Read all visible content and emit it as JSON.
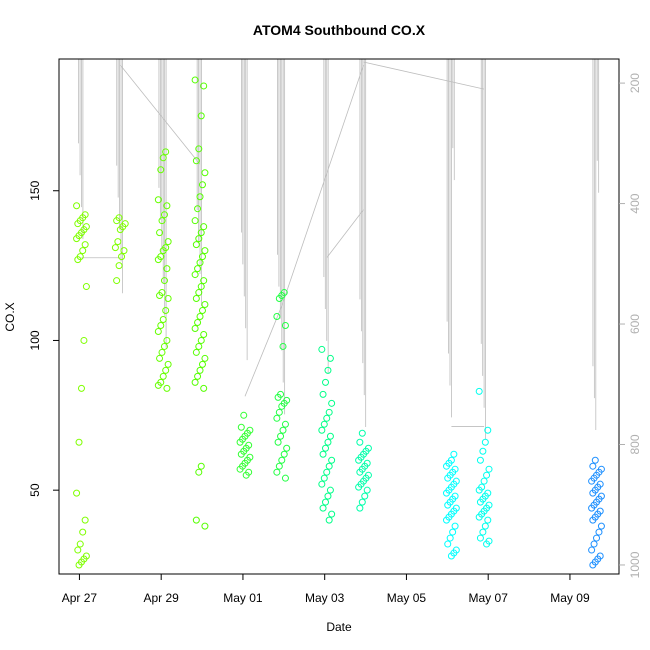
{
  "chart_data": {
    "type": "scatter",
    "title": "ATOM4 Southbound CO.X",
    "xlabel": "Date",
    "ylabel": "CO.X",
    "x_ticks": [
      "Apr 27",
      "Apr 29",
      "May 01",
      "May 03",
      "May 05",
      "May 07",
      "May 09"
    ],
    "x_tick_days": [
      0,
      2,
      4,
      6,
      8,
      10,
      12
    ],
    "y_ticks": [
      50,
      100,
      150
    ],
    "y2_ticks": [
      200,
      400,
      600,
      800,
      1000
    ],
    "xlim_days": [
      -0.5,
      13.2
    ],
    "ylim": [
      22,
      194
    ],
    "y2lim": [
      1015,
      160
    ],
    "colors": {
      "early": "#7fff00",
      "mid": "#00ff7f",
      "late": "#00ffff",
      "last": "#1e90ff",
      "pressure": "#bdbdbd"
    },
    "series": [
      {
        "day": 0.05,
        "color": "#7fff00",
        "values": [
          145,
          142,
          141,
          140,
          139,
          138,
          137,
          136,
          135,
          134,
          132,
          130,
          128,
          127,
          118,
          100,
          84,
          66,
          49,
          40,
          36,
          32,
          30,
          28,
          27,
          26,
          25
        ]
      },
      {
        "day": 1.0,
        "color": "#7fff00",
        "values": [
          141,
          140,
          139,
          138,
          137,
          133,
          131,
          130,
          128,
          125,
          120
        ]
      },
      {
        "day": 2.05,
        "color": "#66ff00",
        "values": [
          163,
          161,
          157,
          147,
          145,
          142,
          140,
          136,
          133,
          131,
          130,
          128,
          127,
          124,
          120,
          116,
          115,
          114,
          110,
          107,
          105,
          103,
          100,
          98,
          96,
          94,
          92,
          90,
          88,
          86,
          85,
          84
        ]
      },
      {
        "day": 2.95,
        "color": "#55ff00",
        "values": [
          187,
          185,
          175,
          164,
          160,
          156,
          152,
          148,
          144,
          140,
          138,
          136,
          134,
          132,
          130,
          128,
          126,
          124,
          122,
          120,
          118,
          116,
          114,
          112,
          110,
          108,
          106,
          104,
          102,
          100,
          98,
          96,
          94,
          92,
          90,
          88,
          86,
          84,
          58,
          56,
          40,
          38
        ]
      },
      {
        "day": 4.05,
        "color": "#33ff33",
        "values": [
          75,
          71,
          70,
          69,
          68,
          67,
          66,
          65,
          64,
          63,
          62,
          61,
          60,
          59,
          58,
          57,
          56,
          55
        ]
      },
      {
        "day": 4.95,
        "color": "#22ff44",
        "values": [
          116,
          115,
          114,
          108,
          105,
          98,
          82,
          81,
          80,
          79,
          78,
          76,
          74,
          72,
          70,
          68,
          66,
          64,
          62,
          60,
          58,
          56,
          54
        ]
      },
      {
        "day": 6.05,
        "color": "#00ff88",
        "values": [
          97,
          94,
          90,
          86,
          82,
          79,
          76,
          74,
          72,
          70,
          68,
          66,
          64,
          62,
          60,
          58,
          56,
          54,
          52,
          50,
          48,
          46,
          44,
          42,
          40
        ]
      },
      {
        "day": 6.95,
        "color": "#00ffaa",
        "values": [
          69,
          66,
          64,
          63,
          62,
          61,
          60,
          59,
          58,
          57,
          56,
          55,
          54,
          53,
          52,
          51,
          50,
          48,
          46,
          44
        ]
      },
      {
        "day": 9.1,
        "color": "#00ffff",
        "values": [
          62,
          60,
          59,
          58,
          57,
          56,
          55,
          54,
          53,
          52,
          51,
          50,
          49,
          48,
          47,
          46,
          45,
          44,
          43,
          42,
          41,
          40,
          38,
          36,
          34,
          32,
          30,
          29,
          28
        ]
      },
      {
        "day": 9.9,
        "color": "#00ffee",
        "values": [
          83,
          70,
          66,
          63,
          60,
          57,
          55,
          53,
          51,
          50,
          49,
          48,
          47,
          46,
          45,
          44,
          43,
          42,
          41,
          40,
          38,
          36,
          34,
          33,
          32
        ]
      },
      {
        "day": 12.65,
        "color": "#1e90ff",
        "values": [
          60,
          58,
          57,
          56,
          55,
          54,
          53,
          52,
          51,
          50,
          49,
          48,
          47,
          46,
          45,
          44,
          43,
          42,
          41,
          40,
          38,
          36,
          34,
          32,
          30,
          28,
          27,
          26,
          25
        ]
      }
    ]
  }
}
